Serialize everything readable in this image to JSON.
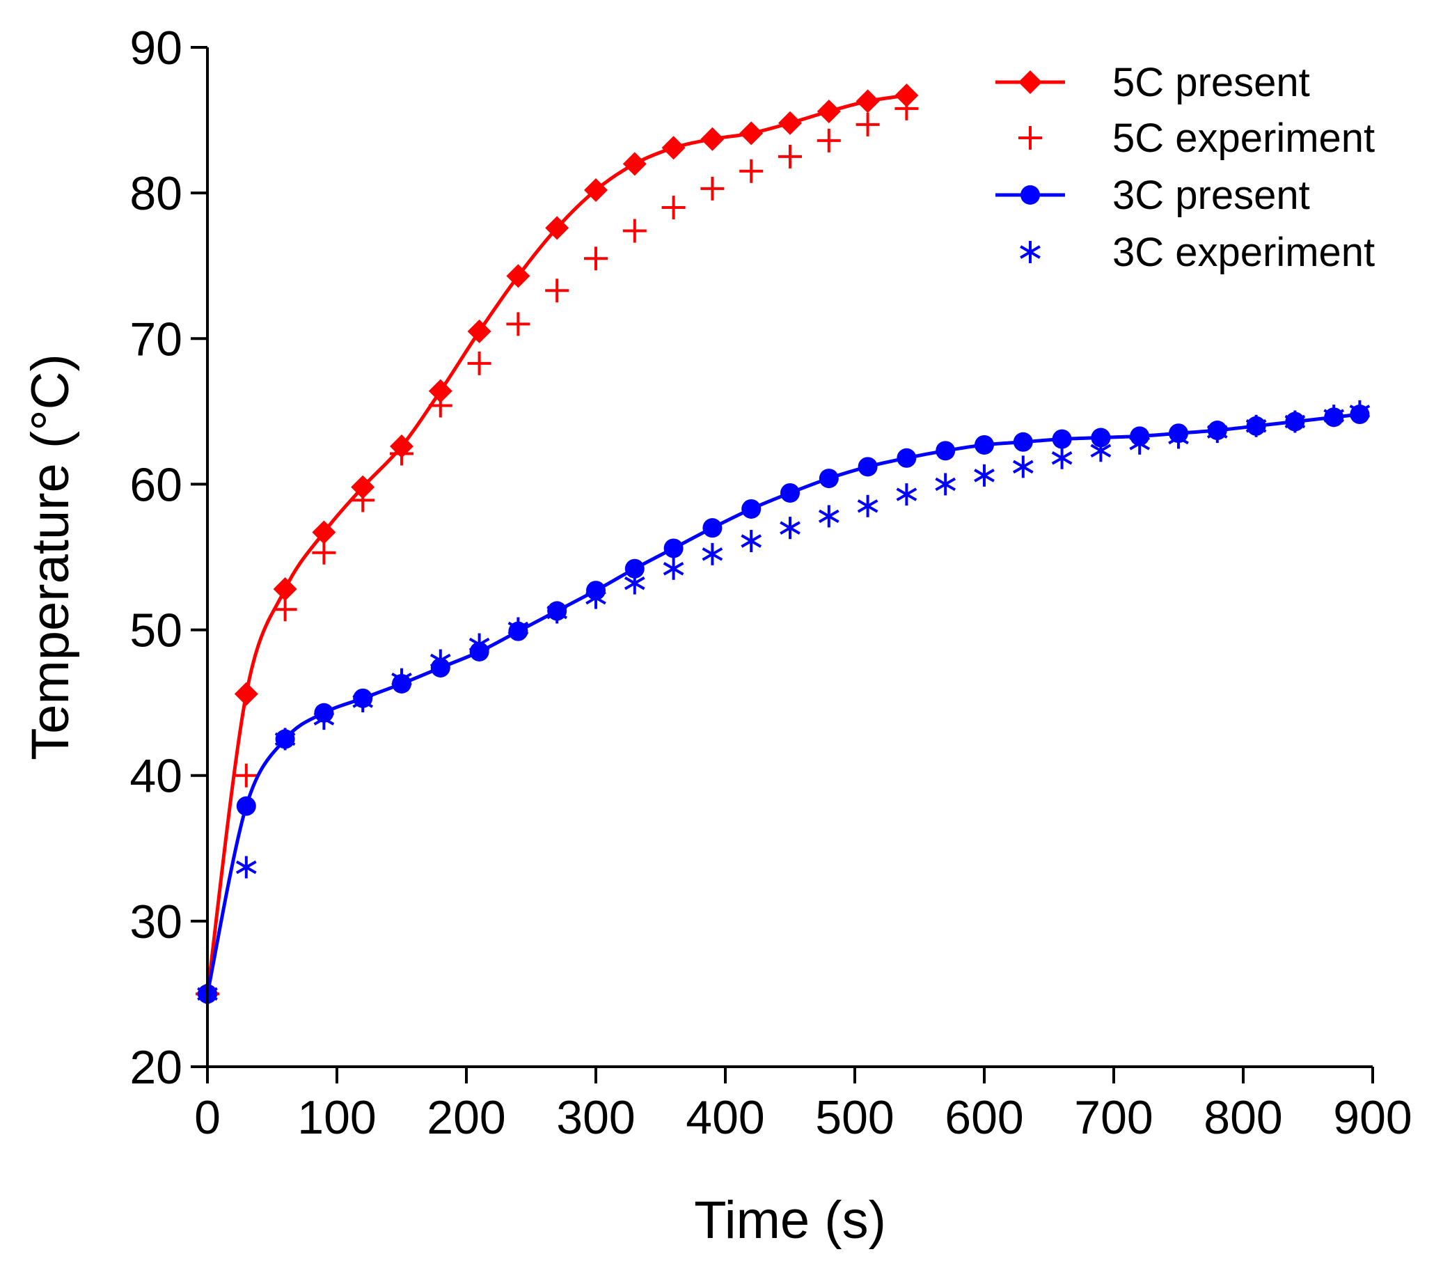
{
  "chart_data": {
    "type": "line",
    "title": "",
    "xlabel": "Time (s)",
    "ylabel": "Temperature (°C)",
    "xlim": [
      0,
      900
    ],
    "ylim": [
      20,
      90
    ],
    "xticks": [
      0,
      100,
      200,
      300,
      400,
      500,
      600,
      700,
      800,
      900
    ],
    "yticks": [
      20,
      30,
      40,
      50,
      60,
      70,
      80,
      90
    ],
    "grid": false,
    "legend_position": "top-right",
    "series": [
      {
        "name": "5C present",
        "color": "#ff0000",
        "style": "line-diamond",
        "x": [
          0,
          30,
          60,
          90,
          120,
          150,
          180,
          210,
          240,
          270,
          300,
          330,
          360,
          390,
          420,
          450,
          480,
          510,
          540
        ],
        "y": [
          25,
          45.6,
          52.8,
          56.7,
          59.8,
          62.6,
          66.4,
          70.5,
          74.3,
          77.6,
          80.2,
          82.0,
          83.1,
          83.7,
          84.1,
          84.8,
          85.6,
          86.3,
          86.7
        ]
      },
      {
        "name": "5C experiment",
        "color": "#ff0000",
        "style": "plus",
        "x": [
          0,
          30,
          60,
          90,
          120,
          150,
          180,
          210,
          240,
          270,
          300,
          330,
          360,
          390,
          420,
          450,
          480,
          510,
          540
        ],
        "y": [
          25,
          40.0,
          51.4,
          55.3,
          58.9,
          62.1,
          65.4,
          68.3,
          71.0,
          73.3,
          75.5,
          77.4,
          79.0,
          80.3,
          81.5,
          82.5,
          83.6,
          84.7,
          85.8
        ]
      },
      {
        "name": "3C present",
        "color": "#0000ff",
        "style": "line-circle",
        "x": [
          0,
          30,
          60,
          90,
          120,
          150,
          180,
          210,
          240,
          270,
          300,
          330,
          360,
          390,
          420,
          450,
          480,
          510,
          540,
          570,
          600,
          630,
          660,
          690,
          720,
          750,
          780,
          810,
          840,
          870,
          890
        ],
        "y": [
          25,
          37.9,
          42.5,
          44.3,
          45.3,
          46.3,
          47.4,
          48.5,
          49.9,
          51.3,
          52.7,
          54.2,
          55.6,
          57.0,
          58.3,
          59.4,
          60.4,
          61.2,
          61.8,
          62.3,
          62.7,
          62.9,
          63.1,
          63.2,
          63.3,
          63.5,
          63.7,
          64.0,
          64.3,
          64.6,
          64.8
        ]
      },
      {
        "name": "3C experiment",
        "color": "#0000ff",
        "style": "asterisk",
        "x": [
          0,
          30,
          60,
          90,
          120,
          150,
          180,
          210,
          240,
          270,
          300,
          330,
          360,
          390,
          420,
          450,
          480,
          510,
          540,
          570,
          600,
          630,
          660,
          690,
          720,
          750,
          780,
          810,
          840,
          870,
          890
        ],
        "y": [
          25,
          33.7,
          42.5,
          43.9,
          45.1,
          46.6,
          47.9,
          49.0,
          50.1,
          51.2,
          52.2,
          53.2,
          54.2,
          55.2,
          56.1,
          57.0,
          57.8,
          58.5,
          59.3,
          60.0,
          60.6,
          61.2,
          61.8,
          62.3,
          62.8,
          63.2,
          63.6,
          64.0,
          64.3,
          64.7,
          65.0
        ]
      }
    ]
  }
}
